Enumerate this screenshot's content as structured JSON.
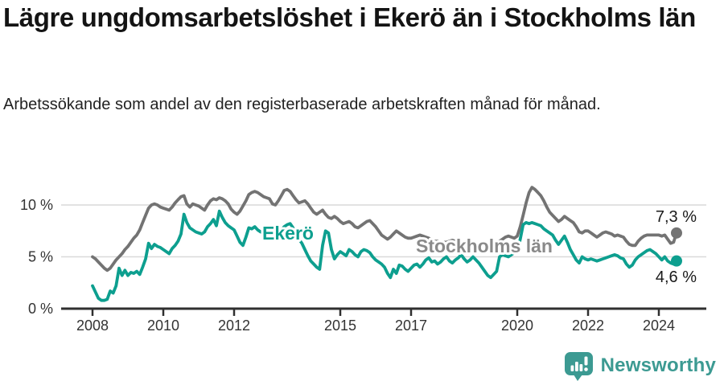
{
  "chart_data": {
    "type": "line",
    "title": "Lägre ungdomsarbetslöshet i Ekerö än i Stockholms län",
    "subtitle": "Arbetssökande som andel av den registerbaserade arbetskraften månad för månad.",
    "unit": "%",
    "grid": "horizontal",
    "legend_position": "direct-labels-on-lines",
    "xlim": [
      2007.1,
      2025.3
    ],
    "ylim": [
      0,
      12.2
    ],
    "x_start": 2008.0,
    "x_step_years": 0.083333,
    "x_ticks": [
      {
        "year": 2008,
        "label": "2008"
      },
      {
        "year": 2010,
        "label": "2010"
      },
      {
        "year": 2012,
        "label": "2012"
      },
      {
        "year": 2015,
        "label": "2015"
      },
      {
        "year": 2017,
        "label": "2017"
      },
      {
        "year": 2020,
        "label": "2020"
      },
      {
        "year": 2022,
        "label": "2022"
      },
      {
        "year": 2024,
        "label": "2024"
      }
    ],
    "y_ticks": [
      {
        "value": 0,
        "label": "0 %",
        "grid": false
      },
      {
        "value": 5,
        "label": "5 %",
        "grid": true
      },
      {
        "value": 10,
        "label": "10 %",
        "grid": true
      }
    ],
    "series": [
      {
        "name": "Stockholms län",
        "color": "#737373",
        "label_color": "#8a8a8a",
        "end_label": "7,3 %",
        "end_value": 7.3,
        "values": [
          5.0,
          4.8,
          4.5,
          4.2,
          3.9,
          3.7,
          3.9,
          4.3,
          4.7,
          5.0,
          5.3,
          5.7,
          6.0,
          6.4,
          6.8,
          7.1,
          7.6,
          8.3,
          9.0,
          9.7,
          10.0,
          10.1,
          10.0,
          9.8,
          9.7,
          9.6,
          9.5,
          9.8,
          10.2,
          10.5,
          10.8,
          10.9,
          10.1,
          9.8,
          10.1,
          10.0,
          9.9,
          9.7,
          9.5,
          10.0,
          10.4,
          10.6,
          10.5,
          10.7,
          10.6,
          10.4,
          10.1,
          9.6,
          9.3,
          9.1,
          9.4,
          9.9,
          10.4,
          11.0,
          11.2,
          11.3,
          11.2,
          11.0,
          10.8,
          10.7,
          10.6,
          10.1,
          10.0,
          10.4,
          10.9,
          11.4,
          11.5,
          11.3,
          10.9,
          10.5,
          10.2,
          10.3,
          10.4,
          10.1,
          9.7,
          9.3,
          9.1,
          9.3,
          9.5,
          9.1,
          8.8,
          8.7,
          8.9,
          8.7,
          8.4,
          8.2,
          8.3,
          8.4,
          8.2,
          7.9,
          7.8,
          8.0,
          8.2,
          8.4,
          8.5,
          8.2,
          7.9,
          7.5,
          7.1,
          6.9,
          6.7,
          6.9,
          7.2,
          7.5,
          7.3,
          7.1,
          6.9,
          6.8,
          6.8,
          6.9,
          7.0,
          7.1,
          7.0,
          6.9,
          6.8,
          6.6,
          6.5,
          6.5,
          6.4,
          6.4,
          6.4,
          6.5,
          6.6,
          6.5,
          6.5,
          6.4,
          6.3,
          6.3,
          6.4,
          6.4,
          6.3,
          6.2,
          6.2,
          6.1,
          6.0,
          6.1,
          6.2,
          6.3,
          6.5,
          6.7,
          6.9,
          7.0,
          6.9,
          6.8,
          7.0,
          7.9,
          9.0,
          10.2,
          11.2,
          11.7,
          11.5,
          11.2,
          10.9,
          10.4,
          9.8,
          9.3,
          9.0,
          8.7,
          8.4,
          8.6,
          8.9,
          8.7,
          8.5,
          8.3,
          7.9,
          7.4,
          7.3,
          7.5,
          7.5,
          7.3,
          7.1,
          6.9,
          7.1,
          7.3,
          7.4,
          7.3,
          7.2,
          7.0,
          7.1,
          7.0,
          6.9,
          6.5,
          6.2,
          6.1,
          6.1,
          6.5,
          6.8,
          7.0,
          7.1,
          7.1,
          7.1,
          7.1,
          7.1,
          7.0,
          7.1,
          6.7,
          6.3,
          6.4,
          7.3
        ]
      },
      {
        "name": "Ekerö",
        "color": "#0d9f8f",
        "label_color": "#0d9f8f",
        "end_label": "4,6 %",
        "end_value": 4.6,
        "values": [
          2.2,
          1.6,
          1.0,
          0.8,
          0.8,
          0.9,
          1.7,
          1.5,
          2.2,
          3.9,
          3.2,
          3.7,
          3.2,
          3.5,
          3.4,
          3.6,
          3.3,
          4.0,
          4.8,
          6.3,
          5.8,
          6.2,
          6.0,
          5.9,
          5.7,
          5.5,
          5.3,
          5.8,
          6.1,
          6.5,
          7.2,
          9.1,
          8.3,
          7.8,
          7.6,
          7.4,
          7.3,
          7.2,
          7.4,
          7.9,
          8.2,
          8.6,
          8.0,
          9.4,
          8.8,
          8.3,
          8.0,
          7.8,
          7.6,
          7.0,
          6.4,
          6.1,
          6.9,
          7.8,
          7.7,
          7.9,
          7.6,
          7.4,
          7.3,
          7.2,
          7.1,
          7.2,
          7.3,
          7.4,
          7.6,
          7.9,
          8.1,
          8.2,
          7.8,
          7.2,
          6.7,
          6.3,
          5.7,
          5.1,
          4.6,
          4.3,
          4.0,
          3.8,
          6.1,
          7.5,
          7.3,
          5.7,
          4.8,
          5.2,
          5.5,
          5.3,
          5.1,
          5.7,
          5.5,
          5.2,
          5.0,
          5.5,
          5.7,
          5.6,
          5.4,
          5.0,
          4.7,
          4.5,
          4.3,
          4.0,
          3.4,
          3.0,
          3.8,
          3.4,
          4.2,
          4.1,
          3.8,
          3.6,
          3.9,
          4.2,
          4.3,
          4.0,
          4.3,
          4.7,
          4.9,
          4.5,
          4.6,
          4.3,
          4.5,
          4.8,
          5.0,
          4.6,
          4.4,
          4.7,
          4.9,
          5.2,
          4.8,
          4.5,
          4.7,
          5.0,
          4.7,
          4.4,
          4.0,
          3.6,
          3.2,
          3.0,
          3.3,
          3.6,
          5.0,
          5.2,
          5.1,
          5.0,
          5.2,
          5.4,
          5.6,
          6.7,
          8.1,
          8.3,
          8.2,
          8.3,
          8.2,
          8.1,
          8.0,
          7.7,
          7.5,
          7.3,
          7.1,
          6.6,
          6.2,
          6.6,
          7.0,
          6.4,
          5.7,
          5.2,
          4.7,
          4.4,
          5.0,
          4.8,
          4.7,
          4.8,
          4.7,
          4.6,
          4.7,
          4.8,
          4.9,
          5.0,
          5.1,
          5.2,
          5.1,
          4.9,
          4.8,
          4.3,
          4.0,
          4.2,
          4.7,
          5.0,
          5.2,
          5.4,
          5.6,
          5.7,
          5.5,
          5.3,
          5.0,
          4.7,
          5.0,
          4.6,
          4.4,
          4.3,
          4.6
        ]
      }
    ],
    "axis_color": "#2f2f2f",
    "gridline_color": "#d9d9d9"
  },
  "footer": {
    "brand": "Newsworthy",
    "brand_color": "#3c9a92",
    "logo_icon": "bar-chart-speech-bubble-icon"
  }
}
